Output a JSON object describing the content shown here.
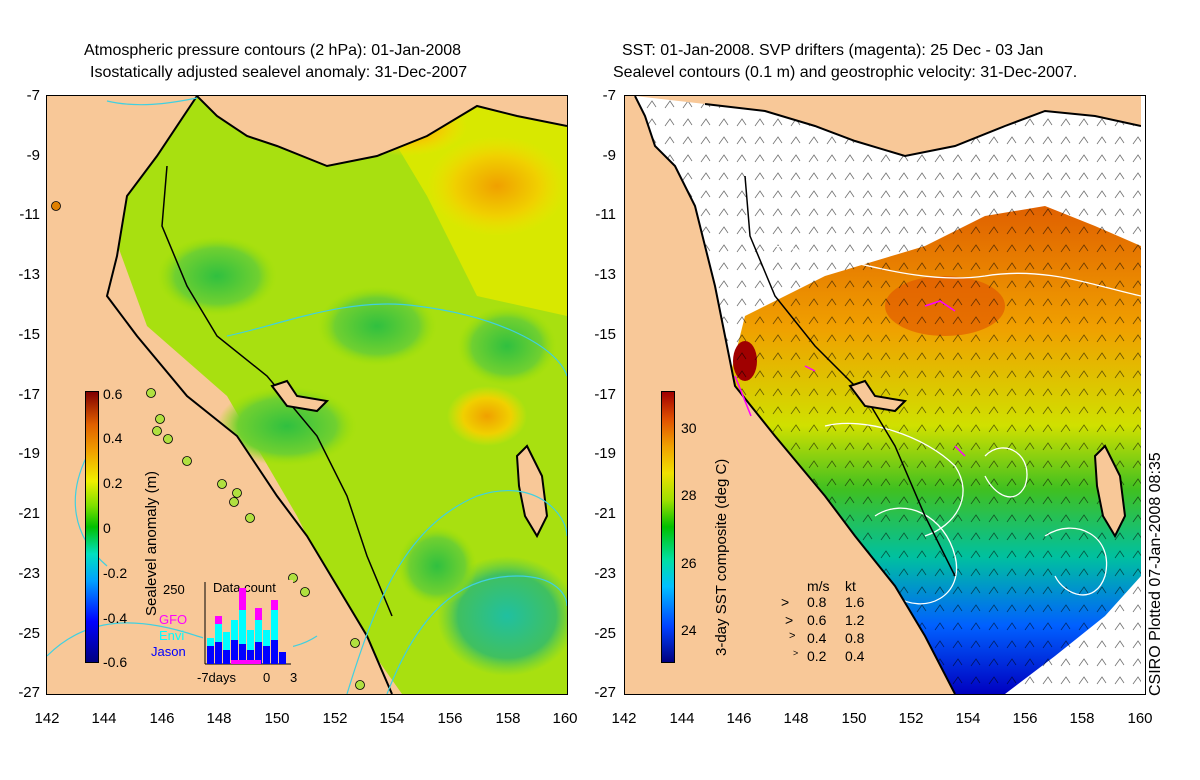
{
  "left_panel": {
    "title_line1": "Atmospheric pressure contours (2 hPa): 01-Jan-2008",
    "title_line2": "Isostatically adjusted sealevel anomaly: 31-Dec-2007",
    "colorbar": {
      "title": "Sealevel anomaly (m)",
      "ticks": [
        "0.6",
        "0.4",
        "0.2",
        "0",
        "-0.2",
        "-0.4",
        "-0.6"
      ],
      "range": [
        -0.6,
        0.6
      ],
      "colors": [
        "#000080",
        "#0000ff",
        "#00a0ff",
        "#00e0c0",
        "#00c000",
        "#80e000",
        "#f0f000",
        "#f0a000",
        "#e06000",
        "#800000"
      ]
    },
    "data_count": {
      "title": "Data count",
      "ymax_label": "250",
      "legend": [
        {
          "name": "GFO",
          "color": "#ff00ff"
        },
        {
          "name": "Envi",
          "color": "#00ffff"
        },
        {
          "name": "Jason",
          "color": "#0000ff"
        }
      ],
      "xticks": [
        "-7days",
        "0",
        "3"
      ]
    }
  },
  "right_panel": {
    "title_line1": "SST: 01-Jan-2008. SVP drifters (magenta): 25 Dec - 03 Jan",
    "title_line2": "Sealevel contours (0.1 m) and geostrophic velocity: 31-Dec-2007.",
    "colorbar": {
      "title": "3-day SST composite (deg C)",
      "ticks": [
        "30",
        "28",
        "26",
        "24"
      ],
      "colors": [
        "#000080",
        "#0040ff",
        "#00c0ff",
        "#00e0a0",
        "#00c000",
        "#a0e000",
        "#f0e000",
        "#f0a000",
        "#e05000",
        "#a00000"
      ]
    },
    "velocity_legend": {
      "header": [
        "m/s",
        "kt"
      ],
      "rows": [
        [
          "0.8",
          "1.6"
        ],
        [
          "0.6",
          "1.2"
        ],
        [
          "0.4",
          "0.8"
        ],
        [
          "0.2",
          "0.4"
        ]
      ]
    },
    "credit": "CSIRO Plotted 07-Jan-2008 08:35"
  },
  "axes": {
    "yticks": [
      "-7",
      "-9",
      "-11",
      "-13",
      "-15",
      "-17",
      "-19",
      "-21",
      "-23",
      "-25",
      "-27"
    ],
    "xticks": [
      "142",
      "144",
      "146",
      "148",
      "150",
      "152",
      "154",
      "156",
      "158",
      "160"
    ]
  },
  "colors": {
    "land": "#f8c898",
    "coast": "#000000",
    "pressure_contour": "#40d0e0",
    "sst_contour": "#ffffff",
    "drifter": "#ff00ff"
  }
}
